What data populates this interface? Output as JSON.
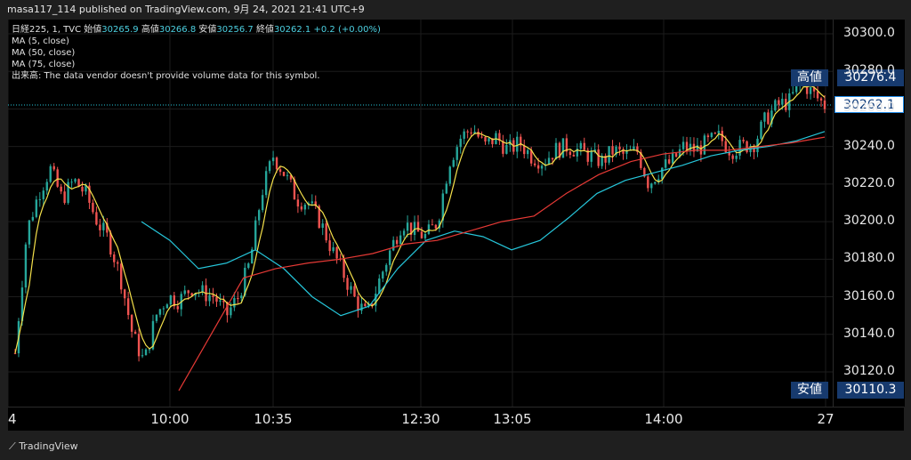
{
  "header": {
    "publisher": "masa117_114 published on TradingView.com, 9月 24, 2021 21:41 UTC+9"
  },
  "legend": {
    "symbol": "日経225, 1, TVC",
    "open_label": "始値",
    "open": "30265.9",
    "high_label": "高値",
    "high": "30266.8",
    "low_label": "安値",
    "low": "30256.7",
    "close_label": "終値",
    "close": "30262.1",
    "change": "+0.2 (+0.00%)",
    "ma5": "MA (5, close)",
    "ma50": "MA (50, close)",
    "ma75": "MA (75, close)",
    "volume_note": "出来高: The data vendor doesn't provide volume data for this symbol."
  },
  "price_tags": {
    "high_label": "高値",
    "high_value": "30276.4",
    "current_value": "30262.1",
    "low_label": "安値",
    "low_value": "30110.3"
  },
  "colors": {
    "up": "#26a69a",
    "down": "#ef5350",
    "ma5": "#f5e14b",
    "ma50": "#26c6da",
    "ma75": "#e53935"
  },
  "footer": {
    "brand": "TradingView"
  },
  "chart_data": {
    "type": "candlestick",
    "yticks": [
      "30300.0",
      "30280.0",
      "30260.0",
      "30240.0",
      "30220.0",
      "30200.0",
      "30180.0",
      "30160.0",
      "30140.0",
      "30120.0"
    ],
    "ylim": [
      30110,
      30300
    ],
    "xticks": [
      "4",
      "10:00",
      "10:35",
      "12:30",
      "13:05",
      "14:00",
      "27"
    ],
    "close_path": [
      30130,
      30195,
      30215,
      30228,
      30212,
      30222,
      30215,
      30200,
      30190,
      30170,
      30140,
      30125,
      30150,
      30160,
      30158,
      30165,
      30162,
      30160,
      30150,
      30160,
      30178,
      30215,
      30235,
      30225,
      30212,
      30210,
      30200,
      30185,
      30172,
      30158,
      30150,
      30168,
      30185,
      30200,
      30195,
      30192,
      30200,
      30232,
      30245,
      30250,
      30240,
      30245,
      30238,
      30242,
      30235,
      30232,
      30238,
      30240,
      30238,
      30235,
      30232,
      30238,
      30235,
      30238,
      30220,
      30228,
      30232,
      30240,
      30238,
      30242,
      30245,
      30238,
      30240,
      30242,
      30255,
      30262,
      30264,
      30275,
      30268,
      30262
    ],
    "ma50_path": [
      30200,
      30190,
      30175,
      30178,
      30185,
      30175,
      30160,
      30150,
      30155,
      30175,
      30190,
      30195,
      30192,
      30185,
      30190,
      30202,
      30215,
      30222,
      30226,
      30230,
      30235,
      30238,
      30240,
      30243,
      30248
    ],
    "ma75_path": [
      30110,
      30140,
      30170,
      30175,
      30178,
      30180,
      30183,
      30188,
      30190,
      30195,
      30200,
      30203,
      30215,
      30225,
      30232,
      30236,
      30238,
      30238,
      30240,
      30242,
      30245
    ]
  }
}
